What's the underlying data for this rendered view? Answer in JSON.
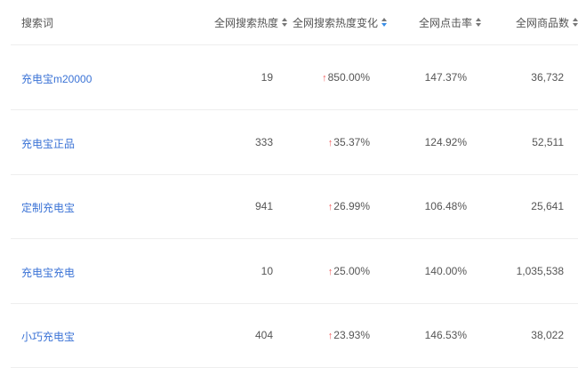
{
  "headers": [
    "搜索词",
    "全网搜索热度",
    "全网搜索热度变化",
    "全网点击率",
    "全网商品数"
  ],
  "sort_active": "全网搜索热度变化",
  "accent_color": "#3b73d6",
  "up_color": "#f05a5a",
  "rows": [
    {
      "keyword": "充电宝m20000",
      "heat": "19",
      "change": "850.00%",
      "ctr": "147.37%",
      "goods": "36,732"
    },
    {
      "keyword": "充电宝正品",
      "heat": "333",
      "change": "35.37%",
      "ctr": "124.92%",
      "goods": "52,511"
    },
    {
      "keyword": "定制充电宝",
      "heat": "941",
      "change": "26.99%",
      "ctr": "106.48%",
      "goods": "25,641"
    },
    {
      "keyword": "充电宝充电",
      "heat": "10",
      "change": "25.00%",
      "ctr": "140.00%",
      "goods": "1,035,538"
    },
    {
      "keyword": "小巧充电宝",
      "heat": "404",
      "change": "23.93%",
      "ctr": "146.53%",
      "goods": "38,022"
    }
  ]
}
